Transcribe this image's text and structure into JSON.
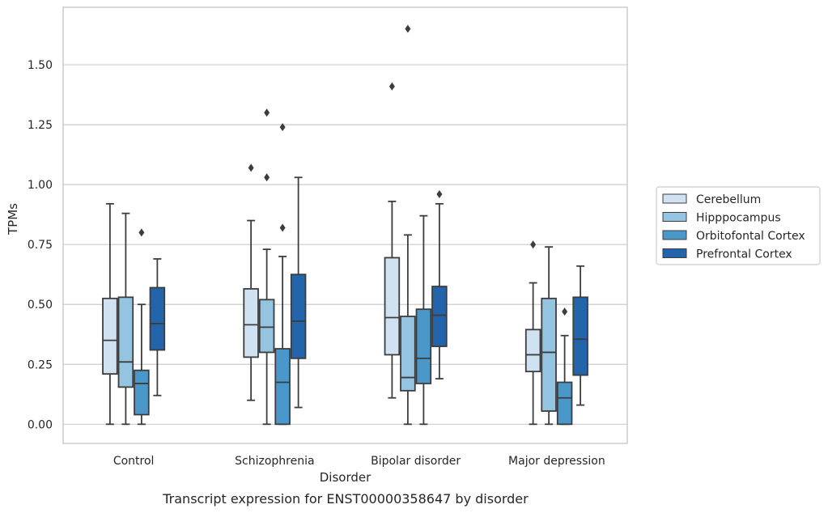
{
  "chart_data": {
    "type": "boxplot",
    "title": "",
    "caption": "Transcript expression for ENST00000358647 by disorder",
    "xlabel": "Disorder",
    "ylabel": "TPMs",
    "ylim": [
      -0.08,
      1.74
    ],
    "yticks": [
      0.0,
      0.25,
      0.5,
      0.75,
      1.0,
      1.25,
      1.5
    ],
    "ytick_labels": [
      "0.00",
      "0.25",
      "0.50",
      "0.75",
      "1.00",
      "1.25",
      "1.50"
    ],
    "grid": true,
    "legend_position": "right-outside",
    "categories": [
      "Control",
      "Schizophrenia",
      "Bipolar disorder",
      "Major depression"
    ],
    "series": [
      {
        "name": "Cerebellum",
        "color": "#d0e1f2",
        "boxes": [
          {
            "whisker_low": 0.0,
            "q1": 0.21,
            "median": 0.35,
            "q3": 0.525,
            "whisker_high": 0.92,
            "outliers": []
          },
          {
            "whisker_low": 0.1,
            "q1": 0.28,
            "median": 0.415,
            "q3": 0.565,
            "whisker_high": 0.85,
            "outliers": [
              1.07
            ]
          },
          {
            "whisker_low": 0.11,
            "q1": 0.29,
            "median": 0.445,
            "q3": 0.695,
            "whisker_high": 0.93,
            "outliers": [
              1.41
            ]
          },
          {
            "whisker_low": 0.0,
            "q1": 0.22,
            "median": 0.29,
            "q3": 0.395,
            "whisker_high": 0.59,
            "outliers": [
              0.75
            ]
          }
        ]
      },
      {
        "name": "Hipppocampus",
        "color": "#94c4df",
        "boxes": [
          {
            "whisker_low": 0.0,
            "q1": 0.155,
            "median": 0.26,
            "q3": 0.53,
            "whisker_high": 0.88,
            "outliers": []
          },
          {
            "whisker_low": 0.0,
            "q1": 0.3,
            "median": 0.405,
            "q3": 0.52,
            "whisker_high": 0.73,
            "outliers": [
              1.03,
              1.3
            ]
          },
          {
            "whisker_low": 0.0,
            "q1": 0.14,
            "median": 0.195,
            "q3": 0.45,
            "whisker_high": 0.79,
            "outliers": [
              1.65
            ]
          },
          {
            "whisker_low": 0.0,
            "q1": 0.055,
            "median": 0.3,
            "q3": 0.525,
            "whisker_high": 0.74,
            "outliers": []
          }
        ]
      },
      {
        "name": "Orbitofontal Cortex",
        "color": "#4a98c9",
        "boxes": [
          {
            "whisker_low": 0.0,
            "q1": 0.04,
            "median": 0.17,
            "q3": 0.225,
            "whisker_high": 0.5,
            "outliers": [
              0.8
            ]
          },
          {
            "whisker_low": 0.0,
            "q1": 0.0,
            "median": 0.175,
            "q3": 0.315,
            "whisker_high": 0.7,
            "outliers": [
              0.82,
              1.24
            ]
          },
          {
            "whisker_low": 0.0,
            "q1": 0.17,
            "median": 0.275,
            "q3": 0.48,
            "whisker_high": 0.87,
            "outliers": []
          },
          {
            "whisker_low": 0.0,
            "q1": 0.0,
            "median": 0.11,
            "q3": 0.175,
            "whisker_high": 0.37,
            "outliers": [
              0.47
            ]
          }
        ]
      },
      {
        "name": "Prefrontal Cortex",
        "color": "#2464ab",
        "boxes": [
          {
            "whisker_low": 0.12,
            "q1": 0.31,
            "median": 0.42,
            "q3": 0.57,
            "whisker_high": 0.69,
            "outliers": []
          },
          {
            "whisker_low": 0.07,
            "q1": 0.275,
            "median": 0.43,
            "q3": 0.625,
            "whisker_high": 1.03,
            "outliers": []
          },
          {
            "whisker_low": 0.19,
            "q1": 0.325,
            "median": 0.455,
            "q3": 0.575,
            "whisker_high": 0.92,
            "outliers": [
              0.96
            ]
          },
          {
            "whisker_low": 0.08,
            "q1": 0.205,
            "median": 0.355,
            "q3": 0.53,
            "whisker_high": 0.66,
            "outliers": []
          }
        ]
      }
    ]
  },
  "colors": {
    "grid": "#cccccc",
    "box_edge": "#3d3d3d",
    "frame": "#cccccc"
  }
}
